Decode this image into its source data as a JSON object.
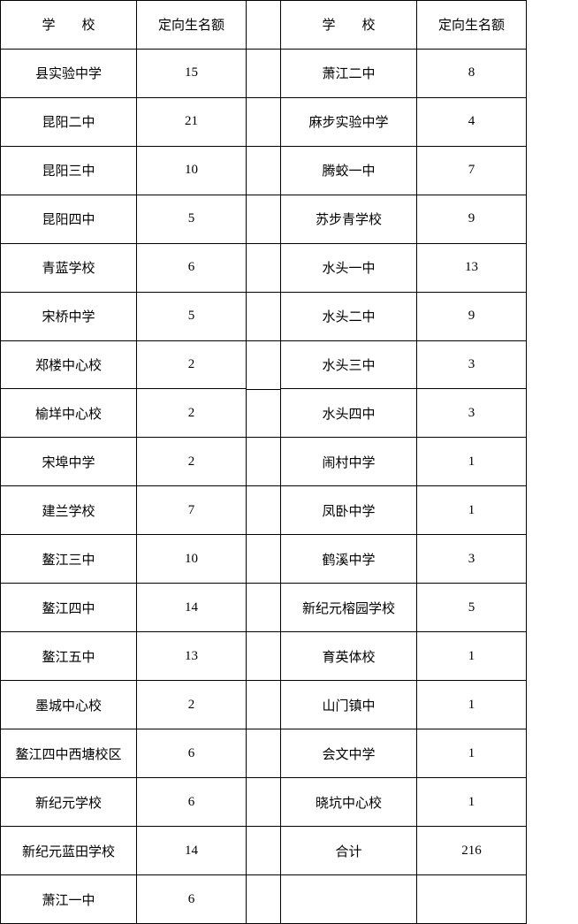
{
  "headers": {
    "school": "学",
    "school2": "校",
    "quota": "定向生名额"
  },
  "leftRows": [
    {
      "school": "县实验中学",
      "quota": "15"
    },
    {
      "school": "昆阳二中",
      "quota": "21"
    },
    {
      "school": "昆阳三中",
      "quota": "10"
    },
    {
      "school": "昆阳四中",
      "quota": "5"
    },
    {
      "school": "青蓝学校",
      "quota": "6"
    },
    {
      "school": "宋桥中学",
      "quota": "5"
    },
    {
      "school": "郑楼中心校",
      "quota": "2"
    },
    {
      "school": "榆垟中心校",
      "quota": "2"
    },
    {
      "school": "宋埠中学",
      "quota": "2"
    },
    {
      "school": "建兰学校",
      "quota": "7"
    },
    {
      "school": "鳌江三中",
      "quota": "10"
    },
    {
      "school": "鳌江四中",
      "quota": "14"
    },
    {
      "school": "鳌江五中",
      "quota": "13"
    },
    {
      "school": "墨城中心校",
      "quota": "2"
    },
    {
      "school": "鳌江四中西塘校区",
      "quota": "6"
    },
    {
      "school": "新纪元学校",
      "quota": "6"
    },
    {
      "school": "新纪元蓝田学校",
      "quota": "14"
    },
    {
      "school": "萧江一中",
      "quota": "6"
    }
  ],
  "rightRows": [
    {
      "school": "萧江二中",
      "quota": "8"
    },
    {
      "school": "麻步实验中学",
      "quota": "4"
    },
    {
      "school": "腾蛟一中",
      "quota": "7"
    },
    {
      "school": "苏步青学校",
      "quota": "9"
    },
    {
      "school": "水头一中",
      "quota": "13"
    },
    {
      "school": "水头二中",
      "quota": "9"
    },
    {
      "school": "水头三中",
      "quota": "3"
    },
    {
      "school": "水头四中",
      "quota": "3"
    },
    {
      "school": "闹村中学",
      "quota": "1"
    },
    {
      "school": "凤卧中学",
      "quota": "1"
    },
    {
      "school": "鹤溪中学",
      "quota": "3"
    },
    {
      "school": "新纪元榕园学校",
      "quota": "5"
    },
    {
      "school": "育英体校",
      "quota": "1"
    },
    {
      "school": "山门镇中",
      "quota": "1"
    },
    {
      "school": "会文中学",
      "quota": "1"
    },
    {
      "school": "晓坑中心校",
      "quota": "1"
    },
    {
      "school": "合计",
      "quota": "216"
    },
    {
      "school": "",
      "quota": ""
    }
  ],
  "style": {
    "border_color": "#000000",
    "background_color": "#ffffff",
    "text_color": "#000000",
    "font_size": 15,
    "row_height": 54.8,
    "left_table_width": 278,
    "right_table_width": 278,
    "gap_width": 38,
    "school_col_width": 154,
    "quota_col_width": 124
  }
}
